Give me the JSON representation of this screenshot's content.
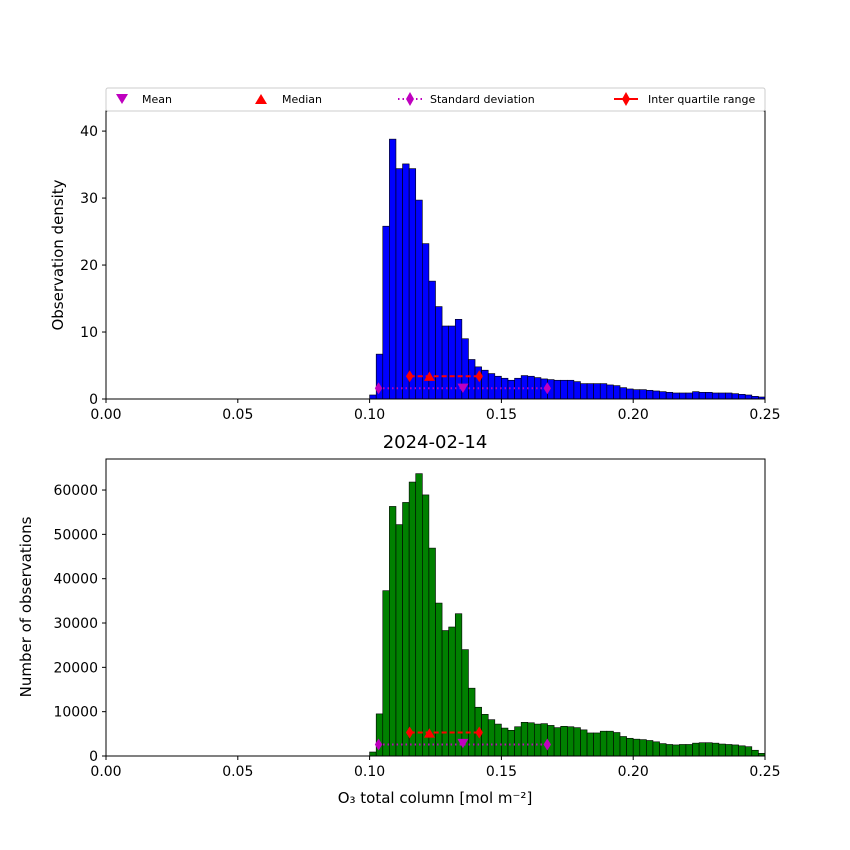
{
  "chart_data": [
    {
      "type": "bar",
      "panel": "top",
      "title": "",
      "xlabel": "",
      "ylabel": "Observation density",
      "xlim": [
        0.0,
        0.25
      ],
      "ylim": [
        0,
        43
      ],
      "xticks": [
        0.0,
        0.05,
        0.1,
        0.15,
        0.2,
        0.25
      ],
      "xtick_labels": [
        "0.00",
        "0.05",
        "0.10",
        "0.15",
        "0.20",
        "0.25"
      ],
      "yticks": [
        0,
        10,
        20,
        30,
        40
      ],
      "ytick_labels": [
        "0",
        "10",
        "20",
        "30",
        "40"
      ],
      "bar_color": "#0000ff",
      "bin_start": 0.1,
      "bin_width": 0.0025,
      "values": [
        0.6,
        6.7,
        25.8,
        38.8,
        34.4,
        35.1,
        34.4,
        29.7,
        23.2,
        17.6,
        13.8,
        10.9,
        10.9,
        11.9,
        9.0,
        5.9,
        4.8,
        4.3,
        3.8,
        3.4,
        3.1,
        2.8,
        3.1,
        3.5,
        3.4,
        3.2,
        3.0,
        2.9,
        2.8,
        2.8,
        2.8,
        2.6,
        2.3,
        2.3,
        2.3,
        2.3,
        2.1,
        2.0,
        1.7,
        1.5,
        1.4,
        1.4,
        1.3,
        1.2,
        1.1,
        1.0,
        0.9,
        0.9,
        0.9,
        1.1,
        1.0,
        1.0,
        0.9,
        0.9,
        0.9,
        0.8,
        0.7,
        0.6,
        0.4,
        0.3
      ],
      "stats": {
        "mean": {
          "x": 0.1354,
          "y": 1.6
        },
        "median": {
          "x": 0.1227,
          "y": 3.4
        },
        "std": {
          "xmin": 0.1034,
          "xmax": 0.1674,
          "y": 1.6
        },
        "iqr": {
          "xmin": 0.1152,
          "xmax": 0.1416,
          "y": 3.4
        }
      },
      "legend": {
        "placement": "top",
        "entries": [
          "Mean",
          "Median",
          "Standard deviation",
          "Inter quartile range"
        ]
      }
    },
    {
      "type": "bar",
      "panel": "bottom",
      "title": "2024-02-14",
      "xlabel": "O₃ total column [mol m⁻²]",
      "ylabel": "Number of observations",
      "xlim": [
        0.0,
        0.25
      ],
      "ylim": [
        0,
        67000
      ],
      "xticks": [
        0.0,
        0.05,
        0.1,
        0.15,
        0.2,
        0.25
      ],
      "xtick_labels": [
        "0.00",
        "0.05",
        "0.10",
        "0.15",
        "0.20",
        "0.25"
      ],
      "yticks": [
        0,
        10000,
        20000,
        30000,
        40000,
        50000,
        60000
      ],
      "ytick_labels": [
        "0",
        "10000",
        "20000",
        "30000",
        "40000",
        "50000",
        "60000"
      ],
      "bar_color": "#008000",
      "bin_start": 0.1,
      "bin_width": 0.0025,
      "values": [
        900,
        9500,
        37300,
        56300,
        52200,
        57200,
        61800,
        63700,
        58900,
        46900,
        34500,
        28300,
        29100,
        32100,
        24000,
        15300,
        11000,
        9400,
        8200,
        7200,
        6300,
        5800,
        6600,
        7600,
        7500,
        7200,
        7300,
        6900,
        6400,
        6700,
        6600,
        6400,
        5900,
        5200,
        5200,
        5600,
        5600,
        5300,
        4400,
        4000,
        3800,
        3700,
        3500,
        3200,
        2800,
        2600,
        2500,
        2600,
        2600,
        2900,
        3000,
        3000,
        2900,
        2700,
        2600,
        2500,
        2300,
        2100,
        1300,
        600
      ],
      "stats": {
        "mean": {
          "x": 0.1354,
          "y": 2800
        },
        "median": {
          "x": 0.1227,
          "y": 5200
        },
        "std": {
          "xmin": 0.1034,
          "xmax": 0.1674,
          "y": 2600
        },
        "iqr": {
          "xmin": 0.1152,
          "xmax": 0.1416,
          "y": 5300
        }
      }
    }
  ],
  "colors": {
    "mean": "#bf00bf",
    "median": "#ff0000",
    "std": "#bf00bf",
    "iqr": "#ff0000"
  }
}
